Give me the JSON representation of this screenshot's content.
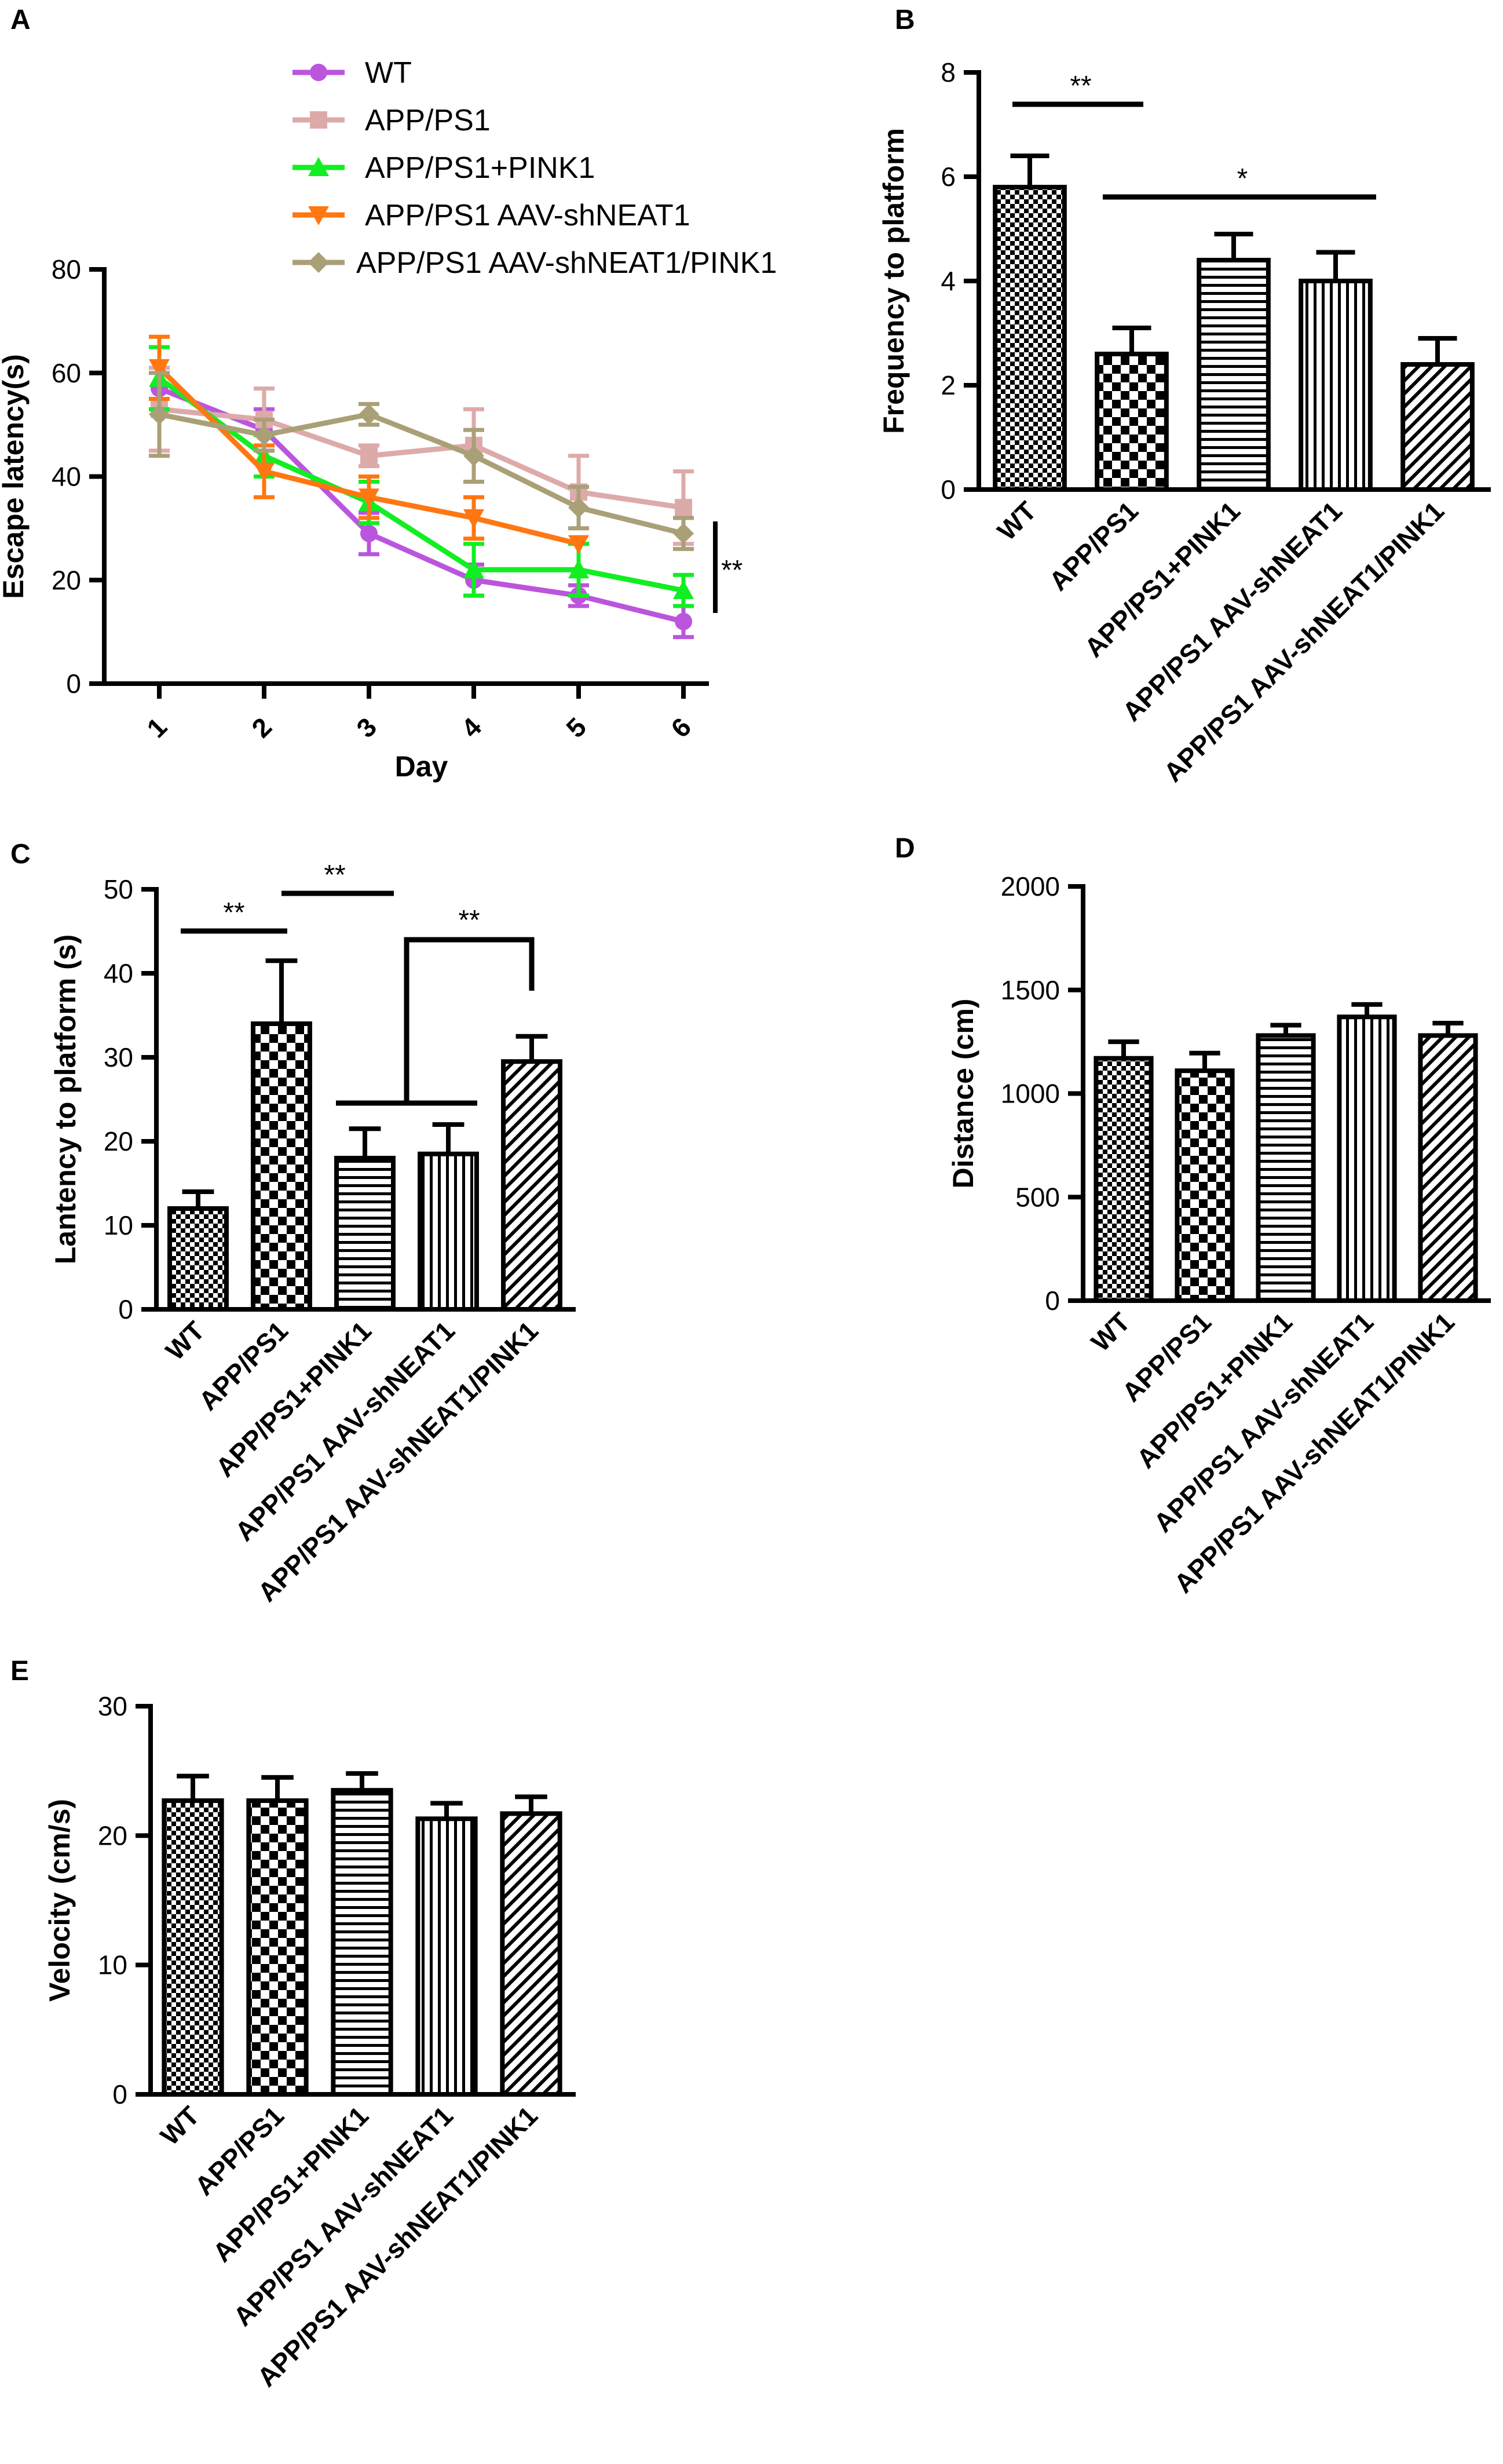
{
  "chart_data": [
    {
      "id": "A",
      "type": "line",
      "panel_label": "A",
      "xlabel": "Day",
      "ylabel": "Escape latency(s)",
      "x": [
        1,
        2,
        3,
        4,
        5,
        6
      ],
      "x_ticks": [
        "1",
        "2",
        "3",
        "4",
        "5",
        "6"
      ],
      "ylim": [
        0,
        80
      ],
      "y_ticks": [
        "0",
        "20",
        "40",
        "60",
        "80"
      ],
      "significance": "**",
      "series": [
        {
          "name": "WT",
          "color": "#bb55dd",
          "marker": "circle",
          "values": [
            57,
            49,
            29,
            20,
            17,
            12
          ],
          "errors": [
            4,
            4,
            4,
            3,
            2,
            3
          ]
        },
        {
          "name": "APP/PS1",
          "color": "#ddaaaa",
          "marker": "square",
          "values": [
            53,
            51,
            44,
            46,
            37,
            34
          ],
          "errors": [
            8,
            6,
            2,
            7,
            7,
            7
          ]
        },
        {
          "name": "APP/PS1+PINK1",
          "color": "#11ee22",
          "marker": "triangle-up",
          "values": [
            59,
            44,
            35,
            22,
            22,
            18
          ],
          "errors": [
            6,
            4,
            4,
            5,
            5,
            3
          ]
        },
        {
          "name": "APP/PS1 AAV-shNEAT1",
          "color": "#ff7711",
          "marker": "triangle-down",
          "values": [
            61,
            41,
            36,
            32,
            27,
            null
          ],
          "errors": [
            6,
            5,
            4,
            4,
            0,
            null
          ]
        },
        {
          "name": "APP/PS1 AAV-shNEAT1/PINK1",
          "color": "#aaa077",
          "marker": "diamond",
          "values": [
            52,
            48,
            52,
            44,
            34,
            29
          ],
          "errors": [
            8,
            3,
            2,
            5,
            4,
            3
          ]
        }
      ]
    },
    {
      "id": "B",
      "type": "bar",
      "panel_label": "B",
      "xlabel": "",
      "ylabel": "Frequency to platform",
      "categories": [
        "WT",
        "APP/PS1",
        "APP/PS1+PINK1",
        "APP/PS1 AAV-shNEAT1",
        "APP/PS1 AAV-shNEAT1/PINK1"
      ],
      "values": [
        5.8,
        2.6,
        4.4,
        4.0,
        2.4
      ],
      "errors": [
        0.6,
        0.5,
        0.5,
        0.55,
        0.5
      ],
      "ylim": [
        0,
        8
      ],
      "y_ticks": [
        "0",
        "2",
        "4",
        "6",
        "8"
      ],
      "significance": [
        {
          "label": "**",
          "from": 0,
          "to": 1
        },
        {
          "label": "*",
          "from": 1,
          "to": 3
        }
      ]
    },
    {
      "id": "C",
      "type": "bar",
      "panel_label": "C",
      "xlabel": "",
      "ylabel": "Lantency to platform (s)",
      "categories": [
        "WT",
        "APP/PS1",
        "APP/PS1+PINK1",
        "APP/PS1 AAV-shNEAT1",
        "APP/PS1 AAV-shNEAT1/PINK1"
      ],
      "values": [
        12,
        34,
        18,
        18.5,
        29.5
      ],
      "errors": [
        2,
        7.5,
        3.5,
        3.5,
        3
      ],
      "ylim": [
        0,
        50
      ],
      "y_ticks": [
        "0",
        "10",
        "20",
        "30",
        "40",
        "50"
      ],
      "significance": [
        {
          "label": "**",
          "from": 0,
          "to": 1
        },
        {
          "label": "**",
          "from": 1,
          "to": 2
        },
        {
          "label": "**",
          "from": 2,
          "to": 4
        }
      ]
    },
    {
      "id": "D",
      "type": "bar",
      "panel_label": "D",
      "xlabel": "",
      "ylabel": "Distance (cm)",
      "categories": [
        "WT",
        "APP/PS1",
        "APP/PS1+PINK1",
        "APP/PS1 AAV-shNEAT1",
        "APP/PS1 AAV-shNEAT1/PINK1"
      ],
      "values": [
        1170,
        1110,
        1280,
        1370,
        1280
      ],
      "errors": [
        80,
        85,
        50,
        60,
        60
      ],
      "ylim": [
        0,
        2000
      ],
      "y_ticks": [
        "0",
        "500",
        "1000",
        "1500",
        "2000"
      ],
      "significance": []
    },
    {
      "id": "E",
      "type": "bar",
      "panel_label": "E",
      "xlabel": "",
      "ylabel": "Velocity (cm/s)",
      "categories": [
        "WT",
        "APP/PS1",
        "APP/PS1+PINK1",
        "APP/PS1 AAV-shNEAT1",
        "APP/PS1 AAV-shNEAT1/PINK1"
      ],
      "values": [
        22.7,
        22.7,
        23.5,
        21.3,
        21.7
      ],
      "errors": [
        1.9,
        1.8,
        1.3,
        1.2,
        1.3
      ],
      "ylim": [
        0,
        30
      ],
      "y_ticks": [
        "0",
        "10",
        "20",
        "30"
      ],
      "significance": []
    }
  ]
}
